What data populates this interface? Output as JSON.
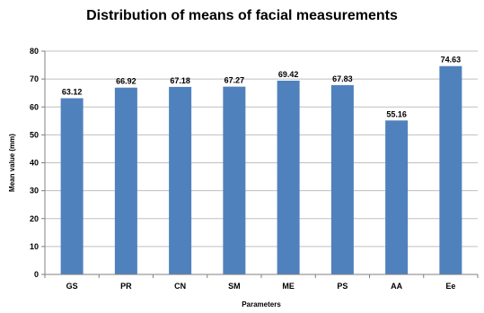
{
  "chart_data": {
    "type": "bar",
    "title": "Distribution of means of facial measurements",
    "xlabel": "Parameters",
    "ylabel": "Mean value (mm)",
    "categories": [
      "GS",
      "PR",
      "CN",
      "SM",
      "ME",
      "PS",
      "AA",
      "Ee"
    ],
    "values": [
      63.12,
      66.92,
      67.18,
      67.27,
      69.42,
      67.83,
      55.16,
      74.63
    ],
    "value_labels": [
      "63.12",
      "66.92",
      "67.18",
      "67.27",
      "69.42",
      "67.83",
      "55.16",
      "74.63"
    ],
    "ylim": [
      0,
      80
    ],
    "yticks": [
      0,
      10,
      20,
      30,
      40,
      50,
      60,
      70,
      80
    ],
    "grid": true,
    "legend": "none",
    "bar_color": "#4F81BD",
    "grid_color": "#BFBFBF"
  }
}
